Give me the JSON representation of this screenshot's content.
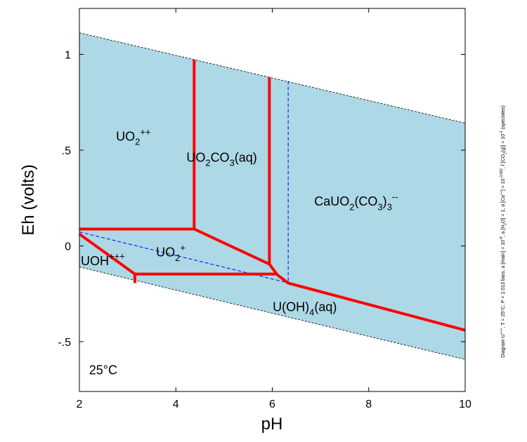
{
  "chart_data": {
    "type": "phase-diagram",
    "xlabel": "pH",
    "ylabel": "Eh (volts)",
    "xlim": [
      2,
      10
    ],
    "ylim": [
      -0.76,
      1.24
    ],
    "xticks": [
      2,
      4,
      6,
      8,
      10
    ],
    "yticks": [
      {
        "value": -0.5,
        "label": "-.5"
      },
      0,
      {
        "value": 0.5,
        "label": ".5"
      },
      1
    ],
    "water": {
      "color": "#add8e6",
      "edge_color": "#000000",
      "upper": {
        "x": [
          2,
          10
        ],
        "y": [
          1.113,
          0.641
        ]
      },
      "lower": {
        "x": [
          2,
          10
        ],
        "y": [
          -0.11,
          -0.593
        ]
      }
    },
    "boundaries": [
      {
        "color": "#ff0000",
        "x": [
          4.38,
          4.38
        ],
        "y": [
          0.971,
          0.088
        ]
      },
      {
        "color": "#ff0000",
        "x": [
          2,
          4.38,
          5.94
        ],
        "y": [
          0.088,
          0.088,
          -0.095
        ]
      },
      {
        "color": "#ff0000",
        "x": [
          5.94,
          5.94,
          6.1,
          6.33,
          10
        ],
        "y": [
          0.879,
          -0.095,
          -0.15,
          -0.194,
          -0.44
        ]
      },
      {
        "color": "#ff0000",
        "x": [
          3.15,
          6.07
        ],
        "y": [
          -0.147,
          -0.147
        ]
      },
      {
        "color": "#ff0000",
        "x": [
          2,
          3.15,
          3.15
        ],
        "y": [
          0.062,
          -0.147,
          -0.194
        ]
      }
    ],
    "dashed": [
      {
        "color": "#0000ff",
        "x": [
          2,
          6.35
        ],
        "y": [
          0.073,
          -0.194
        ]
      },
      {
        "color": "#0000ff",
        "x": [
          6.33,
          6.33
        ],
        "y": [
          0.861,
          -0.194
        ]
      }
    ],
    "fields": [
      {
        "x": 2.76,
        "y": 0.55,
        "parts": [
          {
            "text": "UO"
          },
          {
            "text": "2",
            "sub": true
          },
          {
            "text": "++",
            "sup": true
          }
        ]
      },
      {
        "x": 4.22,
        "y": 0.44,
        "parts": [
          {
            "text": "UO"
          },
          {
            "text": "2",
            "sub": true
          },
          {
            "text": "CO"
          },
          {
            "text": "3",
            "sub": true
          },
          {
            "text": "(aq)"
          }
        ]
      },
      {
        "x": 6.87,
        "y": 0.21,
        "parts": [
          {
            "text": "CaUO"
          },
          {
            "text": "2",
            "sub": true
          },
          {
            "text": "(CO"
          },
          {
            "text": "3",
            "sub": true
          },
          {
            "text": ")"
          },
          {
            "text": "3",
            "sub": true
          },
          {
            "text": "--",
            "sup": true
          }
        ]
      },
      {
        "x": 3.59,
        "y": -0.055,
        "parts": [
          {
            "text": "UO"
          },
          {
            "text": "2",
            "sub": true
          },
          {
            "text": "+",
            "sup": true
          }
        ]
      },
      {
        "x": 2.03,
        "y": -0.1,
        "parts": [
          {
            "text": "UOH"
          },
          {
            "text": "+++",
            "sup": true
          }
        ]
      },
      {
        "x": 6.01,
        "y": -0.34,
        "parts": [
          {
            "text": "U(OH)"
          },
          {
            "text": "4",
            "sub": true
          },
          {
            "text": "(aq)"
          }
        ]
      },
      {
        "x": 2.2,
        "y": -0.67,
        "parts": [
          {
            "text": "25°C"
          }
        ]
      }
    ],
    "note": {
      "parts": [
        {
          "text": "Diagram U"
        },
        {
          "text": "+++",
          "sup": true
        },
        {
          "text": ", T = 25°C, P = 1.013 bars, a [main] = 10"
        },
        {
          "text": "-8",
          "sup": true
        },
        {
          "text": ", a [H"
        },
        {
          "text": "2",
          "sub": true
        },
        {
          "text": "O] = 1, a [Ca"
        },
        {
          "text": "++",
          "sup": true
        },
        {
          "text": "] = 10"
        },
        {
          "text": "-3.682",
          "sup": true
        },
        {
          "text": ", f [CO"
        },
        {
          "text": "2",
          "sub": true
        },
        {
          "text": "(g)] = 10"
        },
        {
          "text": "-2",
          "sup": true
        },
        {
          "text": " (speciates)"
        }
      ]
    }
  }
}
